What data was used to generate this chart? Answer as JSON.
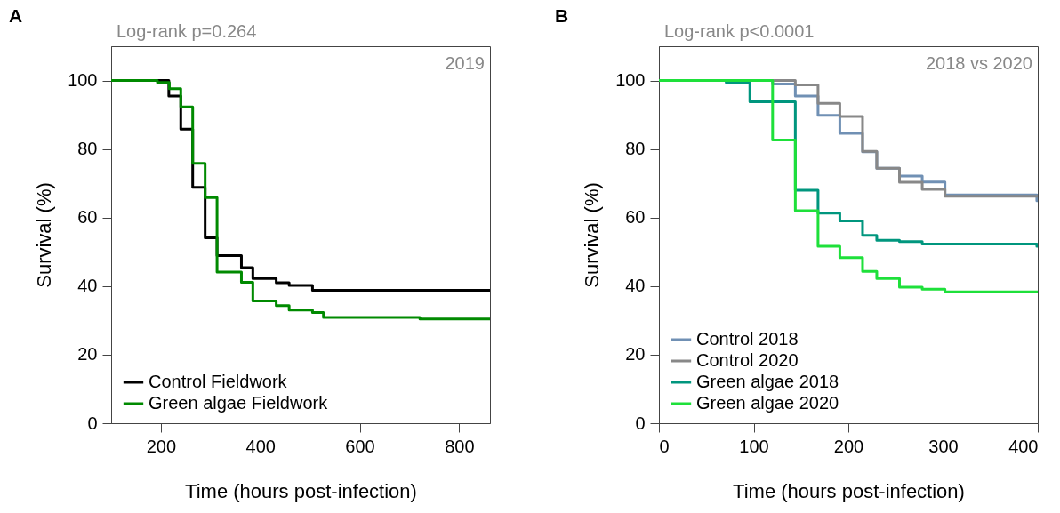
{
  "chart_data": [
    {
      "type": "step",
      "title": "Log-rank p=0.264",
      "xlabel": "Time (hours post-infection)",
      "ylabel": "Survival (%)",
      "annotations": [
        "A",
        "2019"
      ],
      "xlim": [
        100,
        862
      ],
      "xticks": [
        200,
        400,
        600,
        800
      ],
      "ylim": [
        0,
        110
      ],
      "yticks": [
        0,
        20,
        40,
        60,
        80,
        100
      ],
      "grid": false,
      "legend": "bottom left",
      "marker": "none",
      "line_style": "solid",
      "series": [
        {
          "name": "Control Fieldwork",
          "color": "#000000",
          "x": [
            100,
            216,
            240,
            264,
            289,
            313,
            362,
            385,
            432,
            458,
            505,
            862
          ],
          "values": [
            100,
            95.5,
            85.8,
            68.8,
            54.1,
            48.9,
            45.4,
            42.2,
            41.0,
            40.2,
            38.8,
            38.8
          ]
        },
        {
          "name": "Green algae Fieldwork",
          "color": "#008a00",
          "x": [
            100,
            193,
            217,
            240,
            264,
            289,
            313,
            362,
            385,
            432,
            458,
            505,
            527,
            721,
            862
          ],
          "values": [
            100,
            99.4,
            97.6,
            92.3,
            75.8,
            65.8,
            44.1,
            41.1,
            35.7,
            34.3,
            33.0,
            32.3,
            30.9,
            30.4,
            30.4
          ]
        }
      ]
    },
    {
      "type": "step",
      "title": "Log-rank p<0.0001",
      "xlabel": "Time (hours post-infection)",
      "ylabel": "Survival (%)",
      "annotations": [
        "B",
        "2018 vs 2020"
      ],
      "xlim": [
        0,
        400
      ],
      "xticks": [
        0,
        100,
        200,
        300,
        400
      ],
      "ylim": [
        0,
        110
      ],
      "yticks": [
        0,
        20,
        40,
        60,
        80,
        100
      ],
      "grid": false,
      "legend": "bottom left",
      "marker": "none",
      "line_style": "solid",
      "series": [
        {
          "name": "Control 2018",
          "color": "#7090b4",
          "x": [
            0,
            120,
            144,
            168,
            191,
            215,
            230,
            254,
            278,
            302,
            399,
            400
          ],
          "values": [
            100,
            99.0,
            95.5,
            89.8,
            84.6,
            79.2,
            74.4,
            72.1,
            70.4,
            66.6,
            64.9,
            64.9
          ]
        },
        {
          "name": "Control 2020",
          "color": "#888888",
          "x": [
            0,
            144,
            168,
            191,
            215,
            230,
            254,
            278,
            302,
            400
          ],
          "values": [
            100,
            98.7,
            93.3,
            89.5,
            79.3,
            74.4,
            70.3,
            68.2,
            66.2,
            66.2
          ]
        },
        {
          "name": "Green algae 2018",
          "color": "#00967e",
          "x": [
            0,
            71,
            96,
            120,
            144,
            168,
            191,
            215,
            230,
            254,
            278,
            399,
            400
          ],
          "values": [
            100,
            99.4,
            93.8,
            93.8,
            68.0,
            61.3,
            59.0,
            54.8,
            53.4,
            53.0,
            52.3,
            51.6,
            51.6
          ]
        },
        {
          "name": "Green algae 2020",
          "color": "#1ee03a",
          "x": [
            0,
            120,
            144,
            168,
            191,
            215,
            230,
            254,
            278,
            302,
            400
          ],
          "values": [
            100,
            82.6,
            62.0,
            51.6,
            48.3,
            44.3,
            42.2,
            39.7,
            39.1,
            38.3,
            38.3
          ]
        }
      ]
    }
  ]
}
